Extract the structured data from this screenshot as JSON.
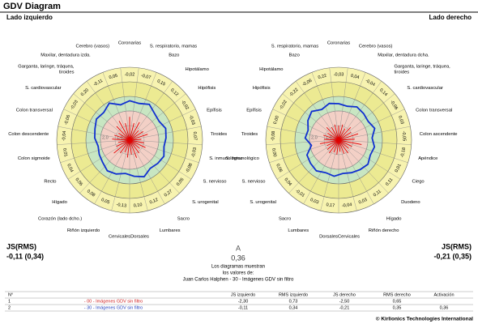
{
  "header": {
    "title": "GDV Diagram"
  },
  "diagrams": [
    {
      "side": "Lado izquierdo",
      "sectors": [
        [
          "Coronarias"
        ],
        [
          "S. respiratorio, mamas"
        ],
        [
          "Bazo"
        ],
        [
          "Hipotálamo"
        ],
        [
          "Hipófisis"
        ],
        [
          "Epífisis"
        ],
        [
          "Tiroides"
        ],
        [
          "S. inmunológico"
        ],
        [
          "S. nervioso"
        ],
        [
          "S. urogenital"
        ],
        [
          "Sacro"
        ],
        [
          "Lumbares"
        ],
        [
          "Dorsales"
        ],
        [
          "Cervicales"
        ],
        [
          "Riñón izquierdo"
        ],
        [
          "Corazón (lado dcho.)"
        ],
        [
          "Hígado"
        ],
        [
          "Recto"
        ],
        [
          "Colon sigmoide"
        ],
        [
          "Colon descendente"
        ],
        [
          "Colon transversal"
        ],
        [
          "S. cardiovascular"
        ],
        [
          "Garganta, laringe, tráquea,",
          "tiroides"
        ],
        [
          "Maxilar, dentadura izda."
        ],
        [
          "Cerebro (vasos)"
        ]
      ],
      "values": [
        "-0,02",
        "-0,07",
        "0,15",
        "0,12",
        "-0,02",
        "-0,03",
        "0,07",
        "-0,03",
        "-0,08",
        "0,05",
        "0,27",
        "0,12",
        "0,10",
        "-0,13",
        "0,05",
        "0,08",
        "0,06",
        "0,04",
        "0,01",
        "-0,04",
        "-0,06",
        "-0,03",
        "0,20",
        "-0,11",
        "0,05"
      ],
      "energy": [
        2.7,
        2.6,
        2.8,
        2.5,
        2.4,
        2.6,
        2.5,
        2.4,
        2.6,
        2.5,
        2.4,
        2.7,
        2.5,
        2.3,
        2.5,
        2.6,
        2.4,
        2.3,
        2.2,
        2.4,
        2.5,
        2.7,
        2.6,
        2.9,
        2.5
      ],
      "center": [
        1.6,
        1.2,
        1.4,
        0.9,
        1.1,
        1.3,
        0.8,
        1.0,
        1.2,
        0.9,
        1.1,
        1.3,
        1.0,
        1.2,
        0.9,
        1.1,
        1.4,
        1.0,
        0.8,
        1.2,
        1.1,
        0.9,
        1.3,
        1.5,
        1.2
      ],
      "scale_labels": [
        {
          "value": 1,
          "label": "1,0"
        },
        {
          "value": 2,
          "label": "2,0"
        }
      ],
      "js_label": "JS(RMS)",
      "js_value": "-0,11 (0,34)"
    },
    {
      "side": "Lado derecho",
      "sectors": [
        [
          "Coronarias"
        ],
        [
          "Cerebro (vasos)"
        ],
        [
          "Maxilar, dentadura dcha."
        ],
        [
          "Garganta, laringe, tráquea,",
          "tiroides"
        ],
        [
          "S. cardiovascular"
        ],
        [
          "Colon transversal"
        ],
        [
          "Colon ascendente"
        ],
        [
          "Apéndice"
        ],
        [
          "Ciego"
        ],
        [
          "Duodeno"
        ],
        [
          "Hígado"
        ],
        [
          "Riñón derecho"
        ],
        [
          "Cervicales"
        ],
        [
          "Dorsales"
        ],
        [
          "Lumbares"
        ],
        [
          "Sacro"
        ],
        [
          "S. urogenital"
        ],
        [
          "S. nervioso"
        ],
        [
          "S. inmunológico"
        ],
        [
          "Tiroides"
        ],
        [
          "Epífisis"
        ],
        [
          "Hipófisis"
        ],
        [
          "Hipotálamo"
        ],
        [
          "Bazo"
        ],
        [
          "S. respiratorio, mamas"
        ]
      ],
      "values": [
        "-0,03",
        "0,04",
        "-0,04",
        "0,14",
        "-0,06",
        "0,03",
        "-0,05",
        "-0,18",
        "0,01",
        "0,11",
        "0,11",
        "0,03",
        "-0,04",
        "0,17",
        "0,03",
        "-0,01",
        "0,04",
        "0,06",
        "0,00",
        "-0,08",
        "0,00",
        "-0,02",
        "-0,22",
        "-0,06",
        "0,22"
      ],
      "energy": [
        2.5,
        2.4,
        2.6,
        2.5,
        2.4,
        2.6,
        2.3,
        2.5,
        2.4,
        2.6,
        2.5,
        2.4,
        2.3,
        2.5,
        2.4,
        2.6,
        2.5,
        2.4,
        1.9,
        2.3,
        2.2,
        2.5,
        2.7,
        2.4,
        2.6
      ],
      "center": [
        1.0,
        1.1,
        0.9,
        1.2,
        1.0,
        1.4,
        1.1,
        1.6,
        1.0,
        0.9,
        1.1,
        1.0,
        0.8,
        1.0,
        0.9,
        1.1,
        1.0,
        0.9,
        1.3,
        1.0,
        1.1,
        0.9,
        1.2,
        1.0,
        1.1
      ],
      "scale_labels": [
        {
          "value": 1,
          "label": "1,0"
        },
        {
          "value": 2,
          "label": "2,0"
        }
      ],
      "js_label": "JS(RMS)",
      "js_value": "-0,21 (0,35)"
    }
  ],
  "summary": {
    "title": "A",
    "value": "0,36",
    "lines": [
      "Los diagramas muestran",
      "los valores de:",
      "Juan Carlos Halphen - 30 - Imágenes GDV sin filtro"
    ]
  },
  "table": {
    "no_header": "N°",
    "headers": [
      "JS izquierdo",
      "RMS izquierdo",
      "JS derecho",
      "RMS derecho",
      "Activación"
    ],
    "rows": [
      {
        "no": "1",
        "name": "- 00 - Imágenes GDV sin filtro",
        "values": [
          "-2,30",
          "0,73",
          "-2,50",
          "0,65"
        ]
      },
      {
        "no": "2",
        "name": "- 30 - Imágenes GDV sin filtro",
        "values": [
          "-0,11",
          "0,34",
          "-0,21",
          "0,35",
          "0,36"
        ]
      }
    ]
  },
  "footer": "© Kirlionics Technologies International"
}
